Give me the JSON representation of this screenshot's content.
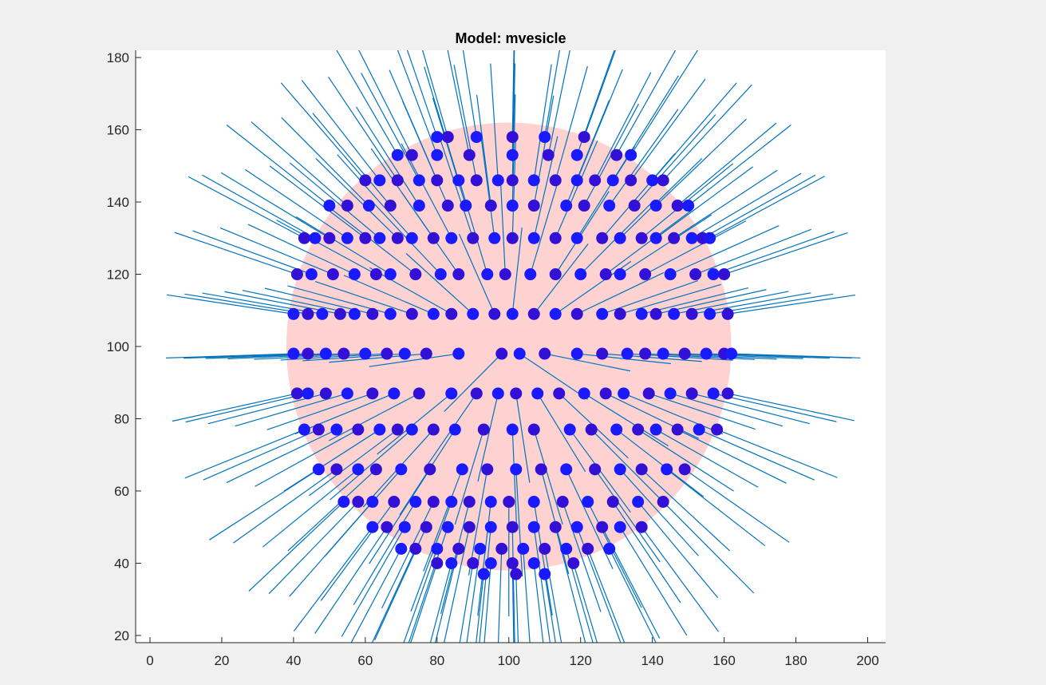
{
  "chart_data": {
    "type": "scatter",
    "title": "Model: mvesicle",
    "xlabel": "",
    "ylabel": "",
    "xlim": [
      -4,
      205
    ],
    "ylim": [
      18,
      182
    ],
    "x_ticks": [
      "0",
      "20",
      "40",
      "60",
      "80",
      "100",
      "120",
      "140",
      "160",
      "180",
      "200"
    ],
    "y_ticks": [
      "20",
      "40",
      "60",
      "80",
      "100",
      "120",
      "140",
      "160",
      "180"
    ],
    "grid": false,
    "legend": "none",
    "vesicle": {
      "center": [
        100,
        100
      ],
      "radius": 62,
      "color": "#ffd2d2"
    },
    "point_colors": [
      "#1a1aff",
      "#3310d6"
    ],
    "vector_color": "#0072bd",
    "rows": [
      {
        "y": 158,
        "x": [
          80,
          83,
          91,
          101,
          110,
          121
        ]
      },
      {
        "y": 153,
        "x": [
          69,
          73,
          80,
          89,
          101,
          111,
          119,
          130,
          134
        ]
      },
      {
        "y": 146,
        "x": [
          60,
          64,
          69,
          75,
          80,
          86,
          91,
          97,
          101,
          107,
          113,
          119,
          124,
          129,
          134,
          140,
          143
        ]
      },
      {
        "y": 139,
        "x": [
          50,
          55,
          61,
          67,
          75,
          83,
          88,
          95,
          101,
          107,
          116,
          121,
          128,
          135,
          141,
          147,
          150
        ]
      },
      {
        "y": 130,
        "x": [
          43,
          46,
          50,
          55,
          60,
          64,
          69,
          73,
          79,
          84,
          90,
          96,
          101,
          107,
          113,
          119,
          126,
          131,
          137,
          141,
          146,
          151,
          154,
          156
        ]
      },
      {
        "y": 120,
        "x": [
          41,
          45,
          51,
          57,
          63,
          67,
          74,
          81,
          86,
          94,
          99,
          106,
          113,
          120,
          127,
          131,
          138,
          145,
          152,
          157,
          160
        ]
      },
      {
        "y": 109,
        "x": [
          40,
          44,
          48,
          53,
          57,
          62,
          67,
          73,
          79,
          84,
          90,
          96,
          101,
          107,
          113,
          119,
          126,
          131,
          137,
          141,
          146,
          151,
          156,
          161
        ]
      },
      {
        "y": 98,
        "x": [
          40,
          44,
          49,
          54,
          60,
          66,
          71,
          77,
          86,
          98,
          103,
          110,
          119,
          126,
          133,
          138,
          143,
          149,
          155,
          160,
          162
        ]
      },
      {
        "y": 87,
        "x": [
          41,
          44,
          49,
          55,
          62,
          68,
          75,
          84,
          91,
          97,
          102,
          108,
          114,
          121,
          127,
          132,
          139,
          145,
          151,
          157,
          161
        ]
      },
      {
        "y": 77,
        "x": [
          43,
          47,
          52,
          58,
          64,
          69,
          73,
          79,
          85,
          93,
          101,
          107,
          117,
          123,
          130,
          136,
          141,
          147,
          153,
          158
        ]
      },
      {
        "y": 66,
        "x": [
          47,
          52,
          58,
          63,
          70,
          78,
          87,
          94,
          102,
          109,
          116,
          124,
          131,
          137,
          144,
          149
        ]
      },
      {
        "y": 57,
        "x": [
          54,
          58,
          62,
          68,
          74,
          79,
          84,
          89,
          95,
          100,
          107,
          115,
          122,
          129,
          136,
          143
        ]
      },
      {
        "y": 50,
        "x": [
          62,
          66,
          71,
          77,
          83,
          89,
          95,
          101,
          107,
          113,
          119,
          126,
          131,
          137
        ]
      },
      {
        "y": 44,
        "x": [
          70,
          74,
          80,
          86,
          92,
          98,
          104,
          110,
          116,
          122,
          128
        ]
      },
      {
        "y": 40,
        "x": [
          80,
          84,
          90,
          95,
          101,
          107,
          118
        ]
      },
      {
        "y": 37,
        "x": [
          93,
          102,
          110
        ]
      }
    ]
  }
}
